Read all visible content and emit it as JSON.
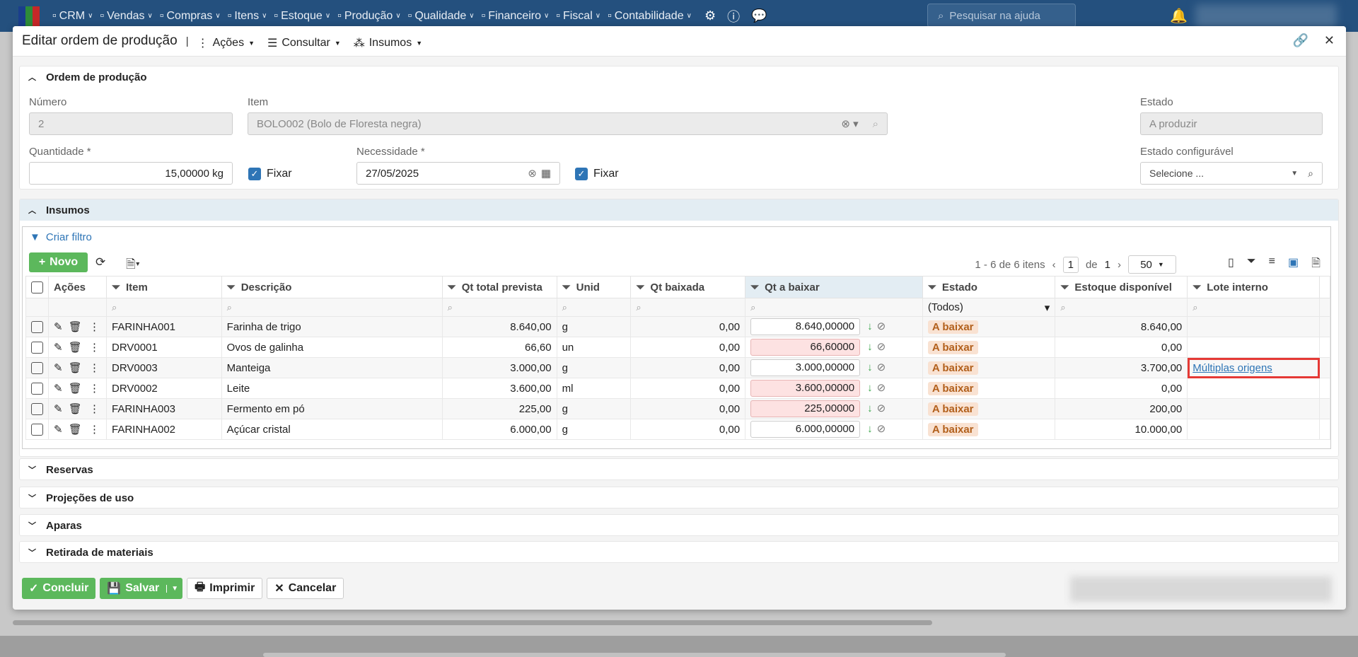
{
  "nav": {
    "items": [
      "CRM",
      "Vendas",
      "Compras",
      "Itens",
      "Estoque",
      "Produção",
      "Qualidade",
      "Financeiro",
      "Fiscal",
      "Contabilidade"
    ],
    "search_placeholder": "Pesquisar na ajuda"
  },
  "dialog": {
    "title": "Editar ordem de produção",
    "menus": [
      "Ações",
      "Consultar",
      "Insumos"
    ]
  },
  "ordem": {
    "section": "Ordem de produção",
    "numero_label": "Número",
    "numero": "2",
    "item_label": "Item",
    "item": "BOLO002 (Bolo de Floresta negra)",
    "estado_label": "Estado",
    "estado": "A produzir",
    "quantidade_label": "Quantidade *",
    "quantidade": "15,00000 kg",
    "fixar": "Fixar",
    "necessidade_label": "Necessidade *",
    "necessidade": "27/05/2025",
    "estado_conf_label": "Estado configurável",
    "estado_conf_placeholder": "Selecione ..."
  },
  "insumos": {
    "section": "Insumos",
    "criar_filtro": "Criar filtro",
    "novo": "Novo",
    "pager": {
      "range": "1 - 6 de 6 itens",
      "page": "1",
      "of": "de",
      "total": "1",
      "per_page": "50"
    },
    "columns": [
      "Ações",
      "Item",
      "Descrição",
      "Qt total prevista",
      "Unid",
      "Qt baixada",
      "Qt a baixar",
      "Estado",
      "Estoque disponível",
      "Lote interno"
    ],
    "estado_filter": "(Todos)",
    "rows": [
      {
        "item": "FARINHA001",
        "desc": "Farinha de trigo",
        "prev": "8.640,00",
        "unid": "g",
        "baixada": "0,00",
        "abaixar": "8.640,00000",
        "estado": "A baixar",
        "estoque": "8.640,00",
        "lote": "",
        "alert": false
      },
      {
        "item": "DRV0001",
        "desc": "Ovos de galinha",
        "prev": "66,60",
        "unid": "un",
        "baixada": "0,00",
        "abaixar": "66,60000",
        "estado": "A baixar",
        "estoque": "0,00",
        "lote": "",
        "alert": true
      },
      {
        "item": "DRV0003",
        "desc": "Manteiga",
        "prev": "3.000,00",
        "unid": "g",
        "baixada": "0,00",
        "abaixar": "3.000,00000",
        "estado": "A baixar",
        "estoque": "3.700,00",
        "lote": "Múltiplas origens",
        "alert": false
      },
      {
        "item": "DRV0002",
        "desc": "Leite",
        "prev": "3.600,00",
        "unid": "ml",
        "baixada": "0,00",
        "abaixar": "3.600,00000",
        "estado": "A baixar",
        "estoque": "0,00",
        "lote": "",
        "alert": true
      },
      {
        "item": "FARINHA003",
        "desc": "Fermento em pó",
        "prev": "225,00",
        "unid": "g",
        "baixada": "0,00",
        "abaixar": "225,00000",
        "estado": "A baixar",
        "estoque": "200,00",
        "lote": "",
        "alert": true
      },
      {
        "item": "FARINHA002",
        "desc": "Açúcar cristal",
        "prev": "6.000,00",
        "unid": "g",
        "baixada": "0,00",
        "abaixar": "6.000,00000",
        "estado": "A baixar",
        "estoque": "10.000,00",
        "lote": "",
        "alert": false
      }
    ]
  },
  "collapsed": [
    "Reservas",
    "Projeções de uso",
    "Aparas",
    "Retirada de materiais"
  ],
  "footer": {
    "concluir": "Concluir",
    "salvar": "Salvar",
    "imprimir": "Imprimir",
    "cancelar": "Cancelar"
  },
  "colors": {
    "nav": "#24507e",
    "green": "#5cb85c",
    "link": "#2e75b6",
    "highlight": "#e53935"
  }
}
